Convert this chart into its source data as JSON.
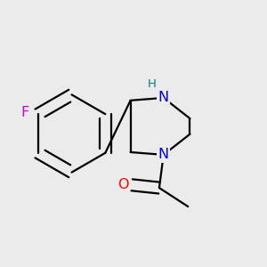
{
  "background_color": "#ebebeb",
  "fig_width": 3.0,
  "fig_height": 3.0,
  "atom_colors": {
    "C": "#000000",
    "N": "#0000cd",
    "O": "#ff0000",
    "F": "#cc00cc",
    "H": "#008080"
  },
  "bond_color": "#000000",
  "bond_width": 1.6,
  "font_size_atom": 11.5,
  "font_size_H": 9.5
}
